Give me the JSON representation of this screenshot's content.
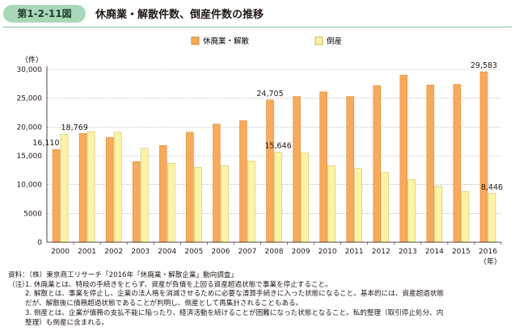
{
  "figure": {
    "number": "第1-2-11図",
    "title": "休廃業・解散件数、倒産件数の推移"
  },
  "colors": {
    "badge": "#a9d8b8",
    "series_closure": "#f7a95c",
    "series_closure_edge": "#d9822b",
    "series_bankruptcy": "#fdf3a6",
    "series_bankruptcy_edge": "#c7b74e",
    "grid": "#9e9e9e"
  },
  "chart_data": {
    "type": "bar",
    "title": "休廃業・解散件数、倒産件数の推移",
    "y_unit_label": "（件）",
    "x_unit_label": "（年）",
    "categories": [
      "2000",
      "2001",
      "2002",
      "2003",
      "2004",
      "2005",
      "2006",
      "2007",
      "2008",
      "2009",
      "2010",
      "2011",
      "2012",
      "2013",
      "2014",
      "2015",
      "2016"
    ],
    "series": [
      {
        "name": "休廃業・解散",
        "values": [
          16110,
          18900,
          18200,
          14000,
          16800,
          19100,
          20500,
          21100,
          24705,
          25300,
          26100,
          25300,
          27200,
          29000,
          27300,
          27400,
          29583
        ]
      },
      {
        "name": "倒産",
        "values": [
          18769,
          19200,
          19100,
          16300,
          13700,
          13000,
          13300,
          14100,
          15646,
          15500,
          13300,
          12800,
          12100,
          10900,
          9700,
          8800,
          8446
        ]
      }
    ],
    "ylim": [
      0,
      30000
    ],
    "yticks": [
      "0",
      "5000",
      "10,000",
      "15,000",
      "20,000",
      "25,000",
      "30,000"
    ],
    "data_labels": [
      {
        "series": 0,
        "index": 0,
        "text": "16,110"
      },
      {
        "series": 1,
        "index": 0,
        "text": "18,769"
      },
      {
        "series": 0,
        "index": 8,
        "text": "24,705"
      },
      {
        "series": 1,
        "index": 8,
        "text": "15,646"
      },
      {
        "series": 0,
        "index": 16,
        "text": "29,583"
      },
      {
        "series": 1,
        "index": 16,
        "text": "8,446"
      }
    ],
    "grid": true,
    "legend_position": "top"
  },
  "notes": {
    "source": "資料：（株）東京商工リサーチ「2016年「休廃業・解散企業」動向調査」",
    "note_label": "（注）",
    "note1": "1. 休廃業とは、特段の手続きをとらず、資産が負債を上回る資産超過状態で事業を停止すること。",
    "note2a": "2. 解散とは、事業を停止し、企業の法人格を消滅させるために必要な清算手続きに入った状態になること。基本的には、資産超過状態",
    "note2b": "だが、解散後に債務超過状態であることが判明し、倒産として再集計されることもある。",
    "note3a": "3. 倒産とは、企業が債務の支払不能に陥ったり、経済活動を続けることが困難になった状態となること。私的整理（取引停止処分、内",
    "note3b": "整理）も倒産に含まれる。"
  }
}
